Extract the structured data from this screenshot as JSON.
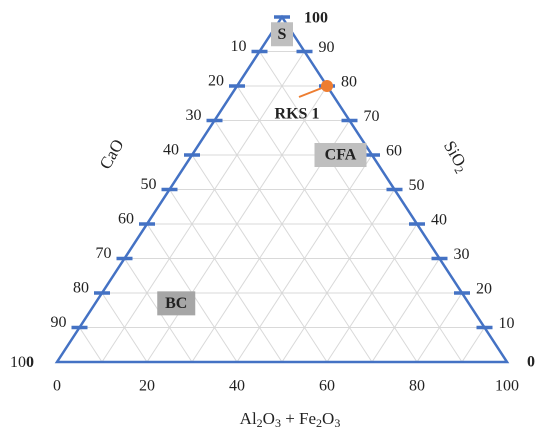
{
  "chart_data": {
    "type": "scatter",
    "subtype": "ternary",
    "apex_label": "S",
    "axes": [
      {
        "name": "CaO",
        "ticks": [
          "10",
          "20",
          "30",
          "40",
          "50",
          "60",
          "70",
          "80",
          "90"
        ],
        "start": "100"
      },
      {
        "name": "SiO₂",
        "name_parts": {
          "base": "SiO",
          "sub": "2"
        },
        "ticks": [
          "90",
          "80",
          "70",
          "60",
          "50",
          "40",
          "30",
          "20",
          "10"
        ],
        "start": "100",
        "end": "0"
      },
      {
        "name": "Al₂O₃ + Fe₂O₃",
        "name_parts": [
          "Al",
          "2",
          "O",
          "3",
          " + Fe",
          "2",
          "O",
          "3"
        ],
        "ticks": [
          "0",
          "20",
          "40",
          "60",
          "80",
          "100"
        ]
      }
    ],
    "regions": [
      {
        "label": "S",
        "sio2": 95,
        "al2o3_fe2o3": 2.5
      },
      {
        "label": "CFA",
        "sio2": 60,
        "al2o3_fe2o3": 33
      },
      {
        "label": "BC",
        "sio2": 17,
        "al2o3_fe2o3": 18
      }
    ],
    "points": [
      {
        "label": "RKS 1",
        "sio2": 80,
        "al2o3_fe2o3": 20,
        "color": "#ED7D31"
      }
    ],
    "grid": true,
    "grid_step": 10,
    "colors": {
      "frame": "#4472C4",
      "grid": "#D9D9D9",
      "point": "#ED7D31",
      "region_box": "#BFBFBF",
      "region_box_dark": "#A6A6A6"
    }
  }
}
